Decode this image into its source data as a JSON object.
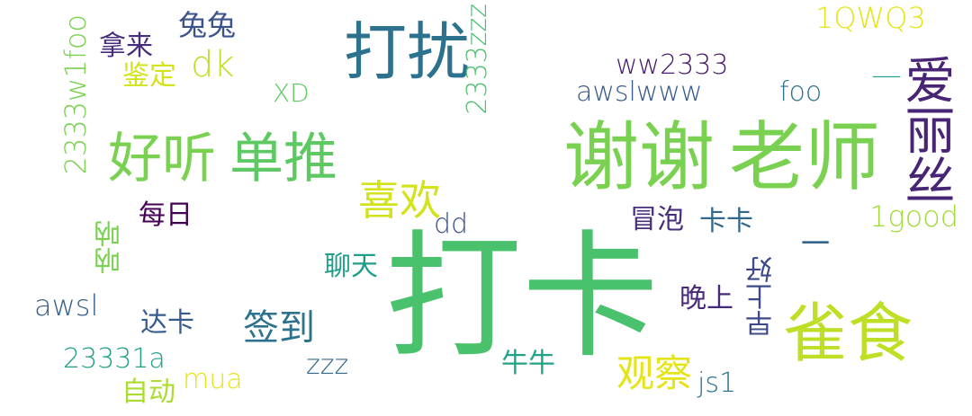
{
  "words": [
    {
      "text": "打卡",
      "color": "#4ac16d"
    },
    {
      "text": "谢谢",
      "color": "#7ad151"
    },
    {
      "text": "老师",
      "color": "#7ad151"
    },
    {
      "text": "好听",
      "color": "#7ad151"
    },
    {
      "text": "单推",
      "color": "#5ec962"
    },
    {
      "text": "打扰",
      "color": "#2c728e"
    },
    {
      "text": "雀食",
      "color": "#bddf26"
    },
    {
      "text": "爱丽丝",
      "color": "#482475"
    },
    {
      "text": "喜欢",
      "color": "#d2e21b"
    },
    {
      "text": "签到",
      "color": "#2c728e"
    },
    {
      "text": "观察",
      "color": "#e5e419"
    },
    {
      "text": "dk",
      "color": "#bddf26"
    },
    {
      "text": "兔兔",
      "color": "#3b528b"
    },
    {
      "text": "拿来",
      "color": "#472d7b"
    },
    {
      "text": "鉴定",
      "color": "#d2e21b"
    },
    {
      "text": "2333w1foo",
      "color": "#7ad151"
    },
    {
      "text": "2333zzz",
      "color": "#4ac16d"
    },
    {
      "text": "XD",
      "color": "#5ec962"
    },
    {
      "text": "ww2333",
      "color": "#481a6c"
    },
    {
      "text": "awslwww",
      "color": "#38598c"
    },
    {
      "text": "foo",
      "color": "#2c728e"
    },
    {
      "text": "1QWQ3",
      "color": "#e5e419"
    },
    {
      "text": "__",
      "color": "#1f9e89"
    },
    {
      "text": "每日",
      "color": "#440154"
    },
    {
      "text": "dd",
      "color": "#3b528b"
    },
    {
      "text": "冒泡",
      "color": "#472d7b"
    },
    {
      "text": "卡卡",
      "color": "#31688e"
    },
    {
      "text": "1good",
      "color": "#a0da39"
    },
    {
      "text": "呐呐",
      "color": "#7ad151"
    },
    {
      "text": "聊天",
      "color": "#1f9e89"
    },
    {
      "text": "一",
      "color": "#32648e"
    },
    {
      "text": "早上好",
      "color": "#3e4989"
    },
    {
      "text": "awsl",
      "color": "#34618d"
    },
    {
      "text": "达卡",
      "color": "#365c8d"
    },
    {
      "text": "晚上",
      "color": "#482878"
    },
    {
      "text": "23331a",
      "color": "#1fa188"
    },
    {
      "text": "zzz",
      "color": "#31688e"
    },
    {
      "text": "牛牛",
      "color": "#20a386"
    },
    {
      "text": "自动",
      "color": "#addc30"
    },
    {
      "text": "mua",
      "color": "#e5e419"
    },
    {
      "text": "js1",
      "color": "#2c728e"
    }
  ]
}
